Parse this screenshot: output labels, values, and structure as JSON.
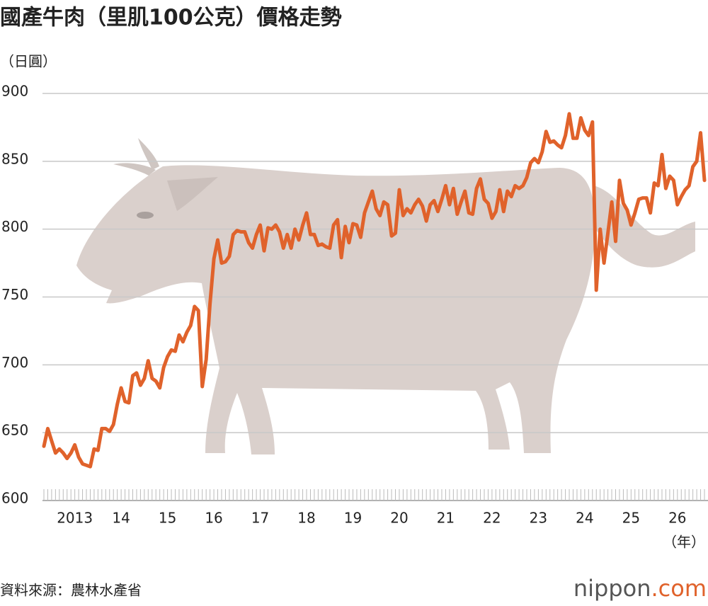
{
  "chart_data": {
    "type": "line",
    "title": "國產牛肉（里肌100公克）價格走勢",
    "y_label": "（日圓）",
    "x_label": "（年）",
    "source": "資料來源：農林水產省",
    "logo": {
      "name": "nippon",
      "suffix": ".com"
    },
    "color": "#e0622b",
    "ylim": [
      600,
      900
    ],
    "yticks": [
      600,
      650,
      700,
      750,
      800,
      850,
      900
    ],
    "grid": true,
    "categories": [
      null,
      null,
      null,
      null,
      null,
      null,
      null,
      null,
      "2013",
      null,
      null,
      null,
      null,
      null,
      null,
      null,
      null,
      null,
      null,
      null,
      "14",
      null,
      null,
      null,
      null,
      null,
      null,
      null,
      null,
      null,
      null,
      null,
      "15",
      null,
      null,
      null,
      null,
      null,
      null,
      null,
      null,
      null,
      null,
      null,
      "16",
      null,
      null,
      null,
      null,
      null,
      null,
      null,
      null,
      null,
      null,
      null,
      "17",
      null,
      null,
      null,
      null,
      null,
      null,
      null,
      null,
      null,
      null,
      null,
      "18",
      null,
      null,
      null,
      null,
      null,
      null,
      null,
      null,
      null,
      null,
      null,
      "19",
      null,
      null,
      null,
      null,
      null,
      null,
      null,
      null,
      null,
      null,
      null,
      "20",
      null,
      null,
      null,
      null,
      null,
      null,
      null,
      null,
      null,
      null,
      null,
      "21",
      null,
      null,
      null,
      null,
      null,
      null,
      null,
      null,
      null,
      null,
      null,
      "22",
      null,
      null,
      null,
      null,
      null,
      null,
      null,
      null,
      null,
      null,
      null,
      "23",
      null,
      null,
      null,
      null,
      null,
      null,
      null,
      null,
      null,
      null,
      null,
      "24",
      null,
      null,
      null,
      null,
      null,
      null,
      null,
      null,
      null,
      null,
      null,
      "25",
      null,
      null,
      null,
      null,
      null,
      null,
      null,
      null,
      null,
      null,
      null,
      "26",
      null,
      null,
      null,
      null,
      null,
      null,
      null
    ],
    "values": [
      640,
      653,
      644,
      635,
      638,
      635,
      631,
      635,
      641,
      632,
      627,
      626,
      625,
      638,
      637,
      653,
      653,
      651,
      656,
      671,
      683,
      673,
      672,
      692,
      694,
      685,
      690,
      703,
      690,
      688,
      683,
      698,
      706,
      711,
      710,
      722,
      717,
      724,
      729,
      743,
      740,
      684,
      704,
      745,
      778,
      792,
      775,
      776,
      780,
      796,
      799,
      798,
      798,
      790,
      786,
      796,
      803,
      784,
      801,
      800,
      803,
      798,
      786,
      796,
      786,
      800,
      792,
      803,
      812,
      796,
      796,
      788,
      789,
      787,
      786,
      803,
      807,
      779,
      802,
      790,
      804,
      803,
      794,
      812,
      820,
      828,
      815,
      810,
      820,
      818,
      795,
      797,
      829,
      810,
      815,
      812,
      818,
      822,
      817,
      806,
      818,
      821,
      813,
      822,
      832,
      818,
      830,
      811,
      820,
      828,
      812,
      811,
      830,
      837,
      822,
      819,
      808,
      813,
      829,
      813,
      828,
      824,
      832,
      830,
      832,
      838,
      849,
      852,
      849,
      857,
      872,
      864,
      865,
      862,
      860,
      869,
      885,
      867,
      867,
      882,
      873,
      869,
      879,
      755,
      800,
      775,
      797,
      820,
      791,
      836,
      819,
      814,
      803,
      812,
      822,
      823,
      823,
      812,
      834,
      832,
      855,
      830,
      839,
      836,
      818,
      824,
      829,
      832,
      846,
      850,
      871,
      836
    ]
  }
}
